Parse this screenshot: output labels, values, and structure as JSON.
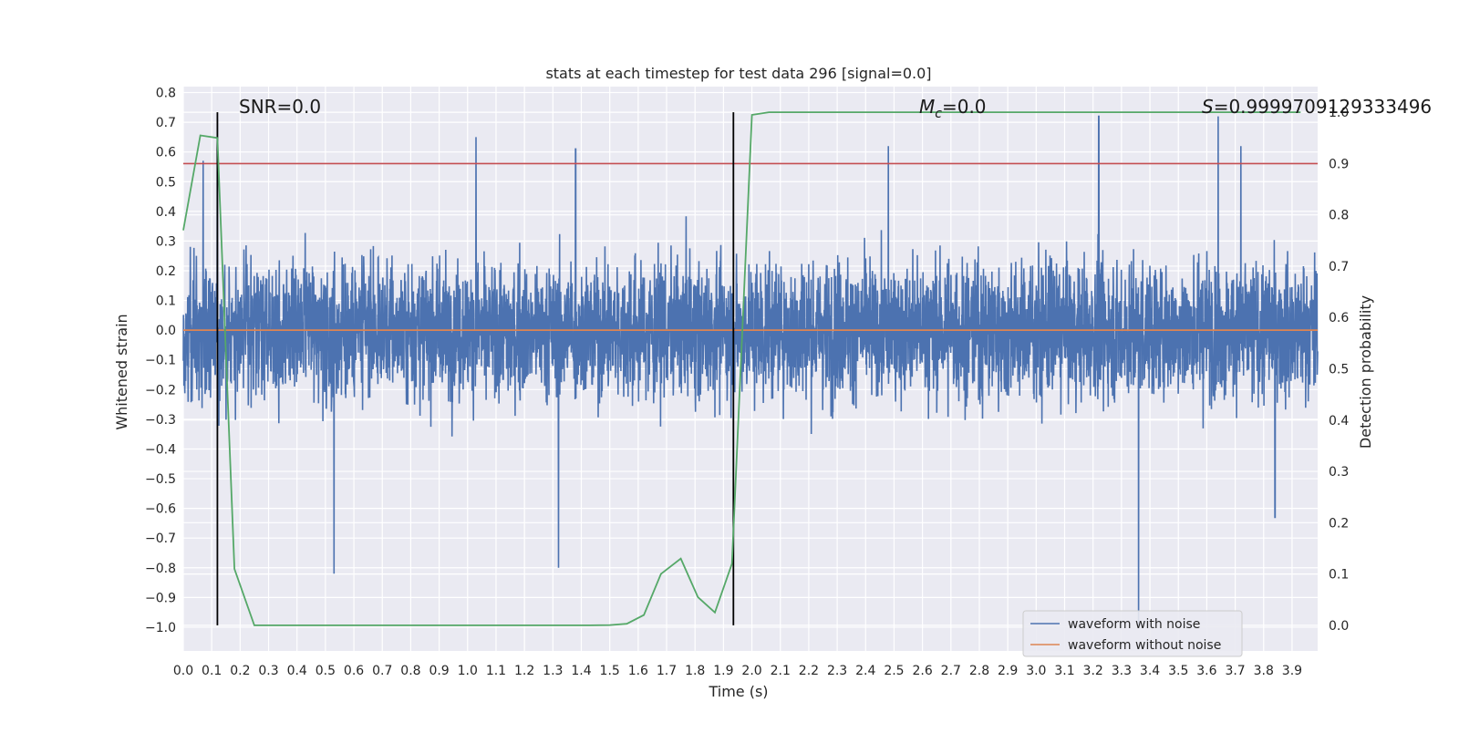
{
  "chart_data": {
    "type": "line",
    "title": "stats at each timestep for test data 296 [signal=0.0]",
    "xlabel": "Time (s)",
    "ylabel": "Whitened strain",
    "y2label": "Detection probability",
    "xlim": [
      0.0,
      3.99
    ],
    "ylim": [
      -1.08,
      0.82
    ],
    "y2lim": [
      -0.05,
      1.05
    ],
    "xticks": [
      0.0,
      0.1,
      0.2,
      0.3,
      0.4,
      0.5,
      0.6,
      0.7,
      0.8,
      0.9,
      1.0,
      1.1,
      1.2,
      1.3,
      1.4,
      1.5,
      1.6,
      1.7,
      1.8,
      1.9,
      2.0,
      2.1,
      2.2,
      2.3,
      2.4,
      2.5,
      2.6,
      2.7,
      2.8,
      2.9,
      3.0,
      3.1,
      3.2,
      3.3,
      3.4,
      3.5,
      3.6,
      3.7,
      3.8,
      3.9
    ],
    "xtick_labels": [
      "0.0",
      "0.1",
      "0.2",
      "0.3",
      "0.4",
      "0.5",
      "0.6",
      "0.7",
      "0.8",
      "0.9",
      "1.0",
      "1.1",
      "1.2",
      "1.3",
      "1.4",
      "1.5",
      "1.6",
      "1.7",
      "1.8",
      "1.9",
      "2.0",
      "2.1",
      "2.2",
      "2.3",
      "2.4",
      "2.5",
      "2.6",
      "2.7",
      "2.8",
      "2.9",
      "3.0",
      "3.1",
      "3.2",
      "3.3",
      "3.4",
      "3.5",
      "3.6",
      "3.7",
      "3.8",
      "3.9"
    ],
    "yticks": [
      0.8,
      0.7,
      0.6,
      0.5,
      0.4,
      0.3,
      0.2,
      0.1,
      0.0,
      -0.1,
      -0.2,
      -0.3,
      -0.4,
      -0.5,
      -0.6,
      -0.7,
      -0.8,
      -0.9,
      -1.0
    ],
    "ytick_labels": [
      "0.8",
      "0.7",
      "0.6",
      "0.5",
      "0.4",
      "0.3",
      "0.2",
      "0.1",
      "0.0",
      "−0.1",
      "−0.2",
      "−0.3",
      "−0.4",
      "−0.5",
      "−0.6",
      "−0.7",
      "−0.8",
      "−0.9",
      "−1.0"
    ],
    "y2ticks": [
      1.0,
      0.9,
      0.8,
      0.7,
      0.6,
      0.5,
      0.4,
      0.3,
      0.2,
      0.1,
      0.0
    ],
    "y2tick_labels": [
      "1.0",
      "0.9",
      "0.8",
      "0.7",
      "0.6",
      "0.5",
      "0.4",
      "0.3",
      "0.2",
      "0.1",
      "0.0"
    ],
    "grid": true,
    "legend_placement": "lower-right",
    "annotations": {
      "snr": "SNR=0.0",
      "mc_symbol": "M",
      "mc_subscript": "c",
      "mc_value": "=0.0",
      "s_symbol": "S",
      "s_value": "=0.9999709129333496"
    },
    "vertical_lines_x": [
      0.12,
      1.935
    ],
    "threshold_probability": 0.9,
    "series": [
      {
        "name": "waveform with noise",
        "color": "#4c72b0",
        "axis": "left",
        "description": "whitened noise around 0, typical amplitude ±0.4",
        "envelope_min": -1.0,
        "envelope_max": 0.72,
        "spikes": [
          {
            "x": 0.07,
            "y": 0.57
          },
          {
            "x": 0.12,
            "y": 0.71
          },
          {
            "x": 0.53,
            "y": -0.82
          },
          {
            "x": 1.03,
            "y": 0.65
          },
          {
            "x": 1.32,
            "y": -0.8
          },
          {
            "x": 1.38,
            "y": 0.61
          },
          {
            "x": 2.48,
            "y": 0.62
          },
          {
            "x": 3.22,
            "y": 0.72
          },
          {
            "x": 3.36,
            "y": -1.0
          },
          {
            "x": 3.64,
            "y": 0.72
          },
          {
            "x": 3.72,
            "y": 0.62
          },
          {
            "x": 3.84,
            "y": -0.63
          }
        ]
      },
      {
        "name": "waveform without noise",
        "color": "#dd8452",
        "axis": "left",
        "x": [
          0.0,
          3.99
        ],
        "y": [
          0.0,
          0.0
        ]
      },
      {
        "color": "#55a868",
        "axis": "right",
        "x": [
          0.0,
          0.06,
          0.12,
          0.18,
          0.25,
          0.31,
          0.37,
          0.44,
          0.5,
          0.56,
          0.62,
          0.68,
          0.75,
          0.81,
          0.87,
          0.93,
          1.0,
          1.06,
          1.12,
          1.18,
          1.25,
          1.31,
          1.37,
          1.43,
          1.5,
          1.56,
          1.62,
          1.68,
          1.75,
          1.81,
          1.87,
          1.93,
          2.0,
          2.06,
          2.12,
          2.18,
          2.25,
          2.31,
          2.37,
          2.43,
          2.5,
          2.56,
          2.62,
          2.68,
          2.75,
          2.81,
          2.87,
          2.93,
          3.0,
          3.06,
          3.12,
          3.18,
          3.25,
          3.31,
          3.37,
          3.43,
          3.5,
          3.56,
          3.62,
          3.68,
          3.75,
          3.81,
          3.87,
          3.93
        ],
        "y": [
          0.77,
          0.955,
          0.95,
          0.11,
          0.0,
          0.0,
          0.0,
          0.0,
          0.0,
          0.0,
          0.0,
          0.0,
          0.0,
          0.0,
          0.0,
          0.0,
          0.0,
          0.0,
          0.0,
          0.0,
          0.0,
          0.0,
          0.0,
          0.0,
          0.0005,
          0.003,
          0.02,
          0.1,
          0.13,
          0.055,
          0.025,
          0.12,
          0.995,
          1.0,
          1.0,
          1.0,
          1.0,
          1.0,
          1.0,
          1.0,
          1.0,
          1.0,
          1.0,
          1.0,
          1.0,
          1.0,
          1.0,
          1.0,
          1.0,
          1.0,
          1.0,
          1.0,
          1.0,
          1.0,
          1.0,
          1.0,
          1.0,
          1.0,
          1.0,
          1.0,
          1.0,
          1.0,
          1.0,
          1.0
        ]
      }
    ],
    "colors": {
      "plot_bg": "#eaeaf2",
      "grid": "#ffffff",
      "threshold": "#c44e52",
      "vline": "#000000",
      "prob": "#55a868"
    }
  }
}
